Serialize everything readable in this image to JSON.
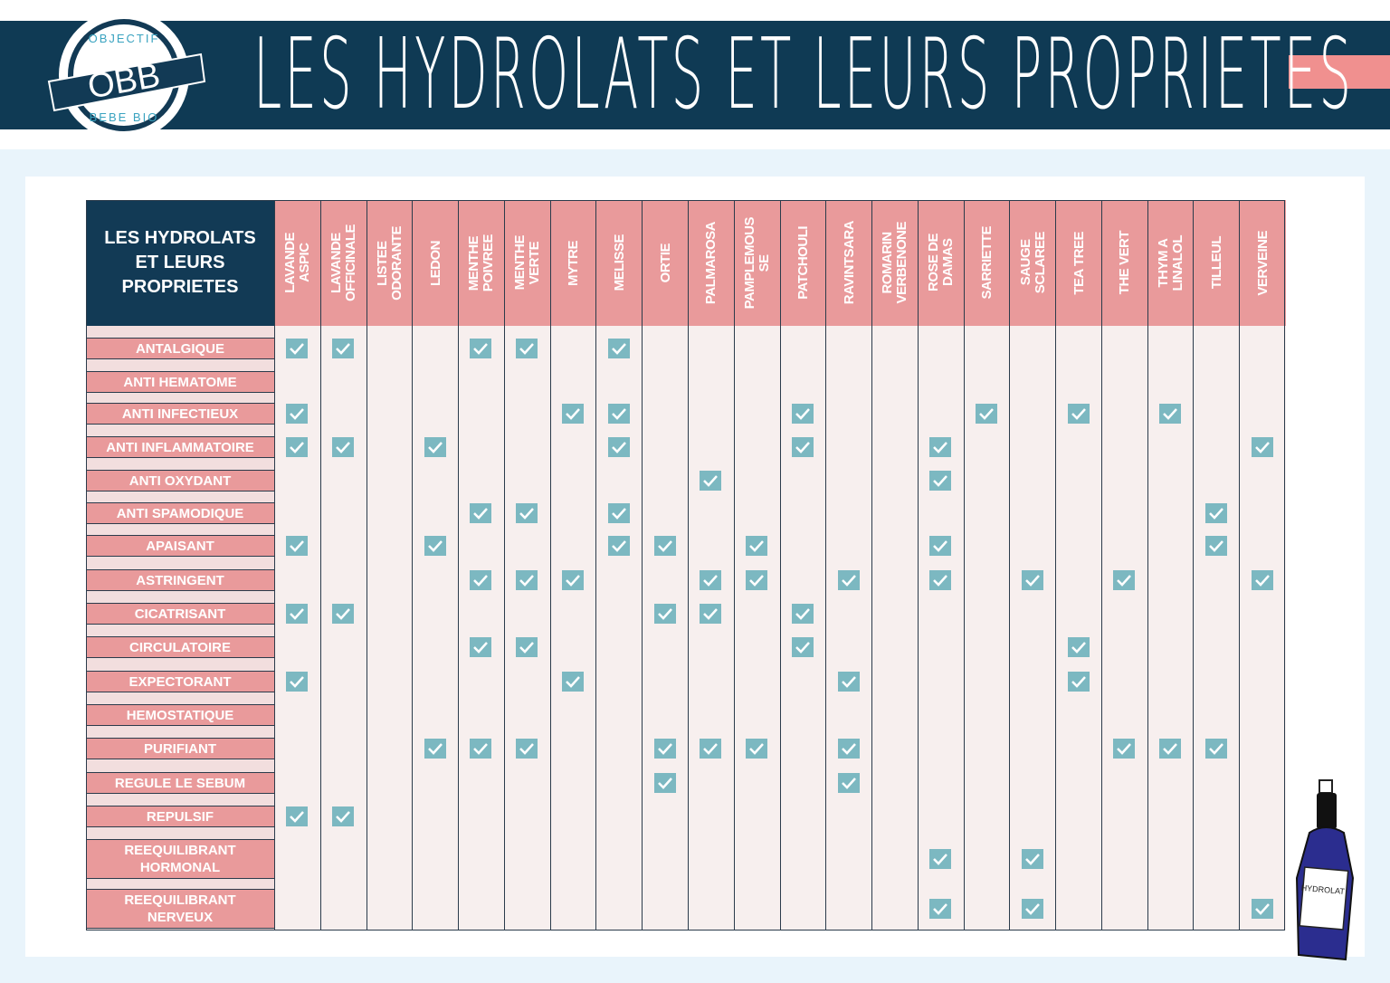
{
  "header": {
    "title": "LES HYDROLATS ET LEURS PROPRIETES",
    "logo": {
      "top_text": "OBJECTIF",
      "center_text": "OBB",
      "bottom_text": "BEBE BIO"
    }
  },
  "table": {
    "corner_label": "LES HYDROLATS\nET LEURS\nPROPRIETES",
    "columns": [
      "LAVANDE\nASPIC",
      "LAVANDE\nOFFICINALE",
      "LISTEE\nODORANTE",
      "LEDON",
      "MENTHE\nPOIVREE",
      "MENTHE\nVERTE",
      "MYTRE",
      "MELISSE",
      "ORTIE",
      "PALMAROSA",
      "PAMPLEMOUS\nSE",
      "PATCHOULI",
      "RAVINTSARA",
      "ROMARIN\nVERBENONE",
      "ROSE DE\nDAMAS",
      "SARRIETTE",
      "SAUGE\nSCLAREE",
      "TEA TREE",
      "THE VERT",
      "THYM A\nLINALOL",
      "TILLEUL",
      "VERVEINE"
    ],
    "rows": [
      {
        "label": "ANTALGIQUE",
        "checks": [
          0,
          1,
          4,
          5,
          7
        ]
      },
      {
        "label": "ANTI HEMATOME",
        "checks": []
      },
      {
        "label": "ANTI INFECTIEUX",
        "checks": [
          0,
          6,
          7,
          11,
          15,
          17,
          19
        ]
      },
      {
        "label": "ANTI INFLAMMATOIRE",
        "checks": [
          0,
          1,
          3,
          7,
          11,
          14,
          21
        ]
      },
      {
        "label": "ANTI OXYDANT",
        "checks": [
          9,
          14
        ]
      },
      {
        "label": "ANTI SPAMODIQUE",
        "checks": [
          4,
          5,
          7,
          20
        ]
      },
      {
        "label": "APAISANT",
        "checks": [
          0,
          3,
          7,
          8,
          10,
          14,
          20
        ]
      },
      {
        "label": "ASTRINGENT",
        "checks": [
          4,
          5,
          6,
          9,
          10,
          12,
          14,
          16,
          18,
          21
        ]
      },
      {
        "label": "CICATRISANT",
        "checks": [
          0,
          1,
          8,
          9,
          11
        ]
      },
      {
        "label": "CIRCULATOIRE",
        "checks": [
          4,
          5,
          11,
          17
        ]
      },
      {
        "label": "EXPECTORANT",
        "checks": [
          0,
          6,
          12,
          17
        ]
      },
      {
        "label": "HEMOSTATIQUE",
        "checks": []
      },
      {
        "label": "PURIFIANT",
        "checks": [
          3,
          4,
          5,
          8,
          9,
          10,
          12,
          18,
          19,
          20
        ]
      },
      {
        "label": "REGULE LE SEBUM",
        "checks": [
          8,
          12
        ]
      },
      {
        "label": "REPULSIF",
        "checks": [
          0,
          1
        ]
      },
      {
        "label": "REEQUILIBRANT\nHORMONAL",
        "checks": [
          14,
          16
        ]
      },
      {
        "label": "REEQUILIBRANT\nNERVEUX",
        "checks": [
          14,
          16,
          21
        ]
      }
    ]
  },
  "bottle_label": "HYDROLAT",
  "colors": {
    "navy": "#0f3a54",
    "pink": "#e99a9b",
    "check": "#7cb8c1",
    "cell": "#f7efee",
    "background": "#e9f4fb"
  }
}
